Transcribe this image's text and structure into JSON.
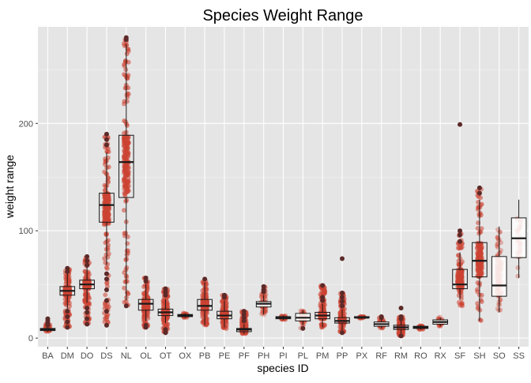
{
  "chart_data": {
    "type": "box",
    "title": "Species Weight Range",
    "xlabel": "species ID",
    "ylabel": "weight range",
    "ylim": [
      -8,
      290
    ],
    "yticks": [
      0,
      100,
      200
    ],
    "grid": true,
    "colors": {
      "panel": "#e5e5e5",
      "grid_major": "#ffffff",
      "points": "#cc4433",
      "outlier": "#5c2a28",
      "box_fill": "#ffffff",
      "box_line": "#1a1a1a"
    },
    "categories": [
      "BA",
      "DM",
      "DO",
      "DS",
      "NL",
      "OL",
      "OT",
      "OX",
      "PB",
      "PE",
      "PF",
      "PH",
      "PI",
      "PL",
      "PM",
      "PP",
      "PX",
      "RF",
      "RM",
      "RO",
      "RX",
      "SF",
      "SH",
      "SO",
      "SS"
    ],
    "boxes": [
      {
        "id": "BA",
        "min": 6,
        "q1": 7,
        "median": 8,
        "q3": 9,
        "max": 11,
        "outliers": [
          12,
          14,
          16,
          18
        ],
        "pts_lo": 6,
        "pts_hi": 14,
        "density": 0.5
      },
      {
        "id": "DM",
        "min": 27,
        "q1": 40,
        "median": 44,
        "q3": 48,
        "max": 60,
        "outliers": [
          10,
          15,
          20,
          25,
          62,
          65
        ],
        "pts_lo": 10,
        "pts_hi": 66,
        "density": 1.0
      },
      {
        "id": "DO",
        "min": 33,
        "q1": 46,
        "median": 50,
        "q3": 54,
        "max": 66,
        "outliers": [
          13,
          18,
          24,
          28,
          68,
          72,
          76
        ],
        "pts_lo": 13,
        "pts_hi": 76,
        "density": 1.0
      },
      {
        "id": "DS",
        "min": 68,
        "q1": 108,
        "median": 124,
        "q3": 135,
        "max": 173,
        "outliers": [
          12,
          25,
          35,
          45,
          55,
          60,
          180,
          185,
          190
        ],
        "pts_lo": 12,
        "pts_hi": 190,
        "density": 1.0
      },
      {
        "id": "NL",
        "min": 35,
        "q1": 131,
        "median": 164,
        "q3": 189,
        "max": 274,
        "outliers": [
          30,
          278,
          280
        ],
        "pts_lo": 30,
        "pts_hi": 280,
        "density": 1.0
      },
      {
        "id": "OL",
        "min": 16,
        "q1": 26,
        "median": 32,
        "q3": 36,
        "max": 50,
        "outliers": [
          10,
          12,
          53,
          56
        ],
        "pts_lo": 10,
        "pts_hi": 56,
        "density": 1.0
      },
      {
        "id": "OT",
        "min": 14,
        "q1": 21,
        "median": 24,
        "q3": 27,
        "max": 36,
        "outliers": [
          5,
          8,
          40,
          43,
          46
        ],
        "pts_lo": 5,
        "pts_hi": 46,
        "density": 1.0
      },
      {
        "id": "OX",
        "min": 19,
        "q1": 20,
        "median": 21,
        "q3": 22,
        "max": 23,
        "outliers": [],
        "pts_lo": 18,
        "pts_hi": 24,
        "density": 0.25
      },
      {
        "id": "PB",
        "min": 12,
        "q1": 26,
        "median": 30,
        "q3": 36,
        "max": 52,
        "outliers": [
          55
        ],
        "pts_lo": 12,
        "pts_hi": 55,
        "density": 1.0
      },
      {
        "id": "PE",
        "min": 10,
        "q1": 18,
        "median": 21,
        "q3": 25,
        "max": 35,
        "outliers": [
          38,
          40
        ],
        "pts_lo": 8,
        "pts_hi": 40,
        "density": 1.0
      },
      {
        "id": "PF",
        "min": 4,
        "q1": 6,
        "median": 8,
        "q3": 9,
        "max": 13,
        "outliers": [
          16,
          19,
          22,
          25
        ],
        "pts_lo": 4,
        "pts_hi": 25,
        "density": 1.0
      },
      {
        "id": "PH",
        "min": 22,
        "q1": 29,
        "median": 32,
        "q3": 34,
        "max": 40,
        "outliers": [
          43,
          45,
          48
        ],
        "pts_lo": 22,
        "pts_hi": 48,
        "density": 0.55
      },
      {
        "id": "PI",
        "min": 17,
        "q1": 18,
        "median": 19,
        "q3": 20,
        "max": 21,
        "outliers": [],
        "pts_lo": 17,
        "pts_hi": 21,
        "density": 0.3
      },
      {
        "id": "PL",
        "min": 12,
        "q1": 16,
        "median": 19,
        "q3": 23,
        "max": 26,
        "outliers": [
          9
        ],
        "pts_lo": 9,
        "pts_hi": 26,
        "density": 0.4
      },
      {
        "id": "PM",
        "min": 10,
        "q1": 18,
        "median": 21,
        "q3": 24,
        "max": 32,
        "outliers": [
          35,
          38,
          49
        ],
        "pts_lo": 10,
        "pts_hi": 49,
        "density": 1.0
      },
      {
        "id": "PP",
        "min": 7,
        "q1": 14,
        "median": 16,
        "q3": 19,
        "max": 27,
        "outliers": [
          5,
          30,
          34,
          38,
          42,
          74
        ],
        "pts_lo": 5,
        "pts_hi": 42,
        "density": 1.0
      },
      {
        "id": "PX",
        "min": 18,
        "q1": 19,
        "median": 19,
        "q3": 20,
        "max": 20,
        "outliers": [],
        "pts_lo": 18,
        "pts_hi": 20,
        "density": 0.2
      },
      {
        "id": "RF",
        "min": 9,
        "q1": 11,
        "median": 13,
        "q3": 15,
        "max": 18,
        "outliers": [
          19,
          20
        ],
        "pts_lo": 9,
        "pts_hi": 20,
        "density": 0.5
      },
      {
        "id": "RM",
        "min": 4,
        "q1": 8,
        "median": 10,
        "q3": 12,
        "max": 16,
        "outliers": [
          2,
          18,
          20,
          28
        ],
        "pts_lo": 2,
        "pts_hi": 20,
        "density": 1.0
      },
      {
        "id": "RO",
        "min": 8,
        "q1": 9,
        "median": 10,
        "q3": 11,
        "max": 12,
        "outliers": [],
        "pts_lo": 7,
        "pts_hi": 12,
        "density": 0.3
      },
      {
        "id": "RX",
        "min": 11,
        "q1": 13,
        "median": 15,
        "q3": 17,
        "max": 19,
        "outliers": [],
        "pts_lo": 11,
        "pts_hi": 20,
        "density": 0.3
      },
      {
        "id": "SF",
        "min": 36,
        "q1": 46,
        "median": 50,
        "q3": 64,
        "max": 80,
        "outliers": [
          90,
          96,
          100,
          199
        ],
        "pts_lo": 30,
        "pts_hi": 100,
        "density": 0.7
      },
      {
        "id": "SH",
        "min": 16,
        "q1": 57,
        "median": 72,
        "q3": 89,
        "max": 129,
        "outliers": [
          135,
          140
        ],
        "pts_lo": 16,
        "pts_hi": 140,
        "density": 0.7
      },
      {
        "id": "SO",
        "min": 24,
        "q1": 39,
        "median": 49,
        "q3": 76,
        "max": 104,
        "outliers": [],
        "pts_lo": 24,
        "pts_hi": 104,
        "density": 0.5
      },
      {
        "id": "SS",
        "min": 56,
        "q1": 75,
        "median": 93,
        "q3": 112,
        "max": 129,
        "outliers": [],
        "pts_lo": 57,
        "pts_hi": 129,
        "density": 0.15
      }
    ]
  }
}
